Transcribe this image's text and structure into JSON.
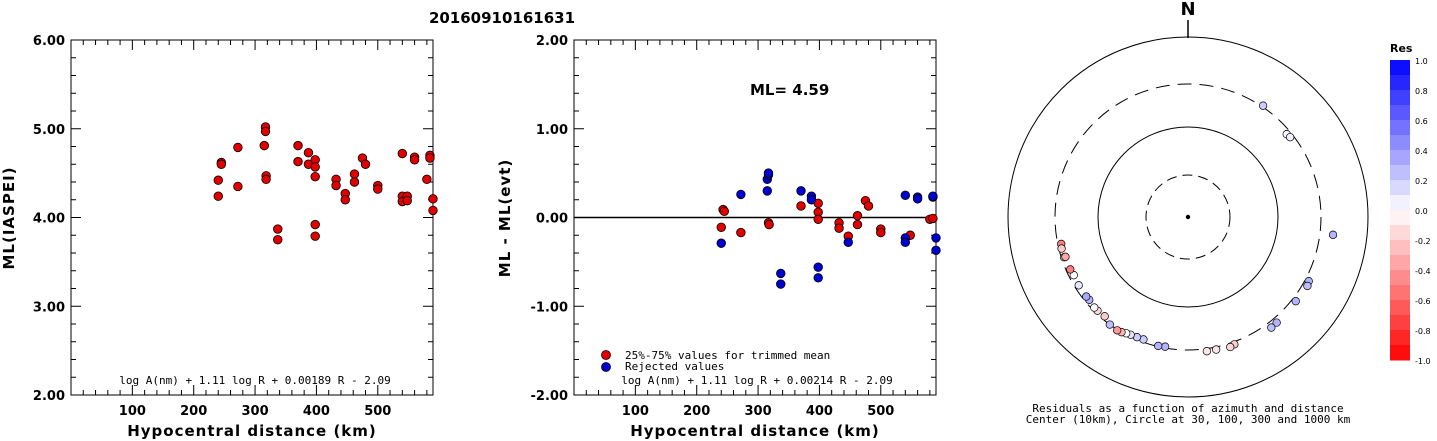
{
  "title": "20160910161631",
  "chart_data": [
    {
      "type": "scatter",
      "ylabel": "ML(IASPEI)",
      "xlabel": "Hypocentral distance (km)",
      "xlim": [
        0,
        590
      ],
      "ylim": [
        2.0,
        6.0
      ],
      "xticks": [
        "100",
        "200",
        "300",
        "400",
        "500"
      ],
      "yticks": [
        "2.00",
        "3.00",
        "4.00",
        "5.00",
        "6.00"
      ],
      "formula": "log A(nm) + 1.11 log R + 0.00189 R - 2.09",
      "series": [
        {
          "color": "#e00000",
          "points": [
            [
              240,
              4.42
            ],
            [
              240,
              4.24
            ],
            [
              245,
              4.62
            ],
            [
              245,
              4.6
            ],
            [
              272,
              4.79
            ],
            [
              272,
              4.35
            ],
            [
              317,
              5.02
            ],
            [
              317,
              4.97
            ],
            [
              315,
              4.81
            ],
            [
              318,
              4.47
            ],
            [
              318,
              4.43
            ],
            [
              337,
              3.87
            ],
            [
              337,
              3.75
            ],
            [
              370,
              4.81
            ],
            [
              370,
              4.63
            ],
            [
              387,
              4.73
            ],
            [
              387,
              4.6
            ],
            [
              398,
              4.65
            ],
            [
              398,
              4.57
            ],
            [
              398,
              4.46
            ],
            [
              398,
              3.92
            ],
            [
              398,
              3.79
            ],
            [
              432,
              4.43
            ],
            [
              432,
              4.36
            ],
            [
              447,
              4.27
            ],
            [
              447,
              4.2
            ],
            [
              462,
              4.49
            ],
            [
              462,
              4.4
            ],
            [
              475,
              4.67
            ],
            [
              480,
              4.6
            ],
            [
              500,
              4.36
            ],
            [
              500,
              4.32
            ],
            [
              540,
              4.72
            ],
            [
              540,
              4.24
            ],
            [
              540,
              4.18
            ],
            [
              548,
              4.24
            ],
            [
              548,
              4.19
            ],
            [
              560,
              4.68
            ],
            [
              560,
              4.65
            ],
            [
              580,
              4.43
            ],
            [
              585,
              4.7
            ],
            [
              585,
              4.67
            ],
            [
              590,
              4.21
            ],
            [
              590,
              4.08
            ]
          ]
        }
      ]
    },
    {
      "type": "scatter",
      "ylabel": "ML - ML(evt)",
      "xlabel": "Hypocentral distance (km)",
      "xlim": [
        0,
        590
      ],
      "ylim": [
        -2.0,
        2.0
      ],
      "xticks": [
        "100",
        "200",
        "300",
        "400",
        "500"
      ],
      "yticks": [
        "-2.00",
        "-1.00",
        "0.00",
        "1.00",
        "2.00"
      ],
      "annotation": "ML= 4.59",
      "formula": "log A(nm) + 1.11 log R + 0.00214 R - 2.09",
      "legend": [
        {
          "label": "25%-75% values for trimmed mean",
          "color": "#e00000"
        },
        {
          "label": "Rejected values",
          "color": "#0000d0"
        }
      ],
      "series": [
        {
          "name": "25%-75% values for trimmed mean",
          "color": "#e00000",
          "points": [
            [
              243,
              0.09
            ],
            [
              245,
              0.07
            ],
            [
              272,
              -0.17
            ],
            [
              240,
              -0.11
            ],
            [
              317,
              -0.06
            ],
            [
              318,
              -0.08
            ],
            [
              370,
              0.13
            ],
            [
              398,
              0.16
            ],
            [
              398,
              0.06
            ],
            [
              398,
              -0.02
            ],
            [
              432,
              -0.06
            ],
            [
              432,
              -0.12
            ],
            [
              447,
              -0.21
            ],
            [
              462,
              0.02
            ],
            [
              462,
              -0.08
            ],
            [
              475,
              0.19
            ],
            [
              480,
              0.13
            ],
            [
              500,
              -0.13
            ],
            [
              500,
              -0.17
            ],
            [
              548,
              -0.2
            ],
            [
              580,
              -0.02
            ],
            [
              585,
              -0.01
            ]
          ]
        },
        {
          "name": "Rejected values",
          "color": "#0000d0",
          "points": [
            [
              240,
              -0.29
            ],
            [
              272,
              0.26
            ],
            [
              315,
              0.43
            ],
            [
              317,
              0.48
            ],
            [
              317,
              0.5
            ],
            [
              315,
              0.3
            ],
            [
              337,
              -0.63
            ],
            [
              337,
              -0.75
            ],
            [
              370,
              0.3
            ],
            [
              387,
              0.24
            ],
            [
              387,
              0.2
            ],
            [
              398,
              -0.56
            ],
            [
              398,
              -0.68
            ],
            [
              447,
              -0.28
            ],
            [
              540,
              0.25
            ],
            [
              540,
              -0.23
            ],
            [
              540,
              -0.28
            ],
            [
              560,
              0.23
            ],
            [
              560,
              0.21
            ],
            [
              585,
              0.23
            ],
            [
              585,
              0.24
            ],
            [
              590,
              -0.23
            ],
            [
              590,
              -0.37
            ]
          ]
        }
      ]
    },
    {
      "type": "polar-scatter",
      "north_label": "N",
      "caption_line1": "Residuals as a function of azimuth and distance",
      "caption_line2": "Center (10km), Circle at 30, 100, 300 and 1000 km",
      "colorbar_title": "Res",
      "colorbar_ticks": [
        "1.0",
        "0.8",
        "0.6",
        "0.4",
        "0.2",
        "0.0",
        "-0.2",
        "-0.4",
        "-0.6",
        "-0.8",
        "-1.0"
      ],
      "points": [
        {
          "az": 34,
          "dist": 310,
          "res": 0.2
        },
        {
          "az": 50,
          "dist": 270,
          "res": 0.0
        },
        {
          "az": 52,
          "dist": 275,
          "res": 0.05
        },
        {
          "az": 97,
          "dist": 420,
          "res": 0.3
        },
        {
          "az": 118,
          "dist": 330,
          "res": 0.3
        },
        {
          "az": 120,
          "dist": 340,
          "res": 0.25
        },
        {
          "az": 128,
          "dist": 330,
          "res": 0.3
        },
        {
          "az": 140,
          "dist": 340,
          "res": 0.3
        },
        {
          "az": 143,
          "dist": 345,
          "res": 0.25
        },
        {
          "az": 160,
          "dist": 320,
          "res": -0.2
        },
        {
          "az": 162,
          "dist": 330,
          "res": -0.15
        },
        {
          "az": 168,
          "dist": 320,
          "res": -0.1
        },
        {
          "az": 172,
          "dist": 320,
          "res": -0.1
        },
        {
          "az": 190,
          "dist": 290,
          "res": 0.3
        },
        {
          "az": 193,
          "dist": 295,
          "res": 0.3
        },
        {
          "az": 200,
          "dist": 280,
          "res": 0.2
        },
        {
          "az": 203,
          "dist": 282,
          "res": 0.2
        },
        {
          "az": 206,
          "dist": 285,
          "res": 0.1
        },
        {
          "az": 208,
          "dist": 290,
          "res": 0.0
        },
        {
          "az": 210,
          "dist": 300,
          "res": -0.3
        },
        {
          "az": 212,
          "dist": 305,
          "res": -0.4
        },
        {
          "az": 216,
          "dist": 300,
          "res": 0.25
        },
        {
          "az": 220,
          "dist": 275,
          "res": -0.2
        },
        {
          "az": 224,
          "dist": 280,
          "res": -0.15
        },
        {
          "az": 226,
          "dist": 280,
          "res": 0.0
        },
        {
          "az": 230,
          "dist": 270,
          "res": 0.3
        },
        {
          "az": 232,
          "dist": 272,
          "res": 0.35
        },
        {
          "az": 238,
          "dist": 270,
          "res": 0.1
        },
        {
          "az": 243,
          "dist": 265,
          "res": 0.0
        },
        {
          "az": 252,
          "dist": 280,
          "res": 0.05
        },
        {
          "az": 246,
          "dist": 270,
          "res": -0.5
        },
        {
          "az": 252,
          "dist": 270,
          "res": -0.35
        },
        {
          "az": 258,
          "dist": 275,
          "res": -0.5
        },
        {
          "az": 256,
          "dist": 280,
          "res": -0.2
        }
      ]
    }
  ]
}
